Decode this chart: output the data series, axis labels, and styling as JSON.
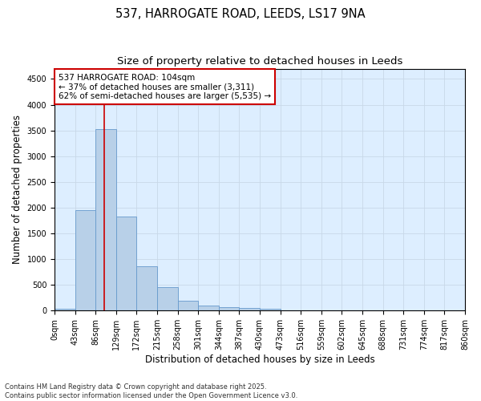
{
  "title_line1": "537, HARROGATE ROAD, LEEDS, LS17 9NA",
  "title_line2": "Size of property relative to detached houses in Leeds",
  "xlabel": "Distribution of detached houses by size in Leeds",
  "ylabel": "Number of detached properties",
  "bar_counts": [
    30,
    1950,
    3520,
    1820,
    860,
    460,
    185,
    100,
    70,
    45,
    30,
    0,
    0,
    0,
    0,
    0,
    0,
    0,
    0,
    0
  ],
  "bin_labels": [
    "0sqm",
    "43sqm",
    "86sqm",
    "129sqm",
    "172sqm",
    "215sqm",
    "258sqm",
    "301sqm",
    "344sqm",
    "387sqm",
    "430sqm",
    "473sqm",
    "516sqm",
    "559sqm",
    "602sqm",
    "645sqm",
    "688sqm",
    "731sqm",
    "774sqm",
    "817sqm",
    "860sqm"
  ],
  "bar_color": "#b8d0e8",
  "bar_edge_color": "#6699cc",
  "vline_x": 2.42,
  "vline_color": "#cc0000",
  "vline_lw": 1.2,
  "annotation_text": "537 HARROGATE ROAD: 104sqm\n← 37% of detached houses are smaller (3,311)\n62% of semi-detached houses are larger (5,535) →",
  "annotation_box_color": "#ffffff",
  "annotation_box_edge_color": "#cc0000",
  "ylim": [
    0,
    4700
  ],
  "yticks": [
    0,
    500,
    1000,
    1500,
    2000,
    2500,
    3000,
    3500,
    4000,
    4500
  ],
  "grid_color": "#c8d8e8",
  "background_color": "#ddeeff",
  "footer_text": "Contains HM Land Registry data © Crown copyright and database right 2025.\nContains public sector information licensed under the Open Government Licence v3.0.",
  "title_fontsize": 10.5,
  "subtitle_fontsize": 9.5,
  "axis_label_fontsize": 8.5,
  "tick_fontsize": 7,
  "annotation_fontsize": 7.5,
  "footer_fontsize": 6
}
